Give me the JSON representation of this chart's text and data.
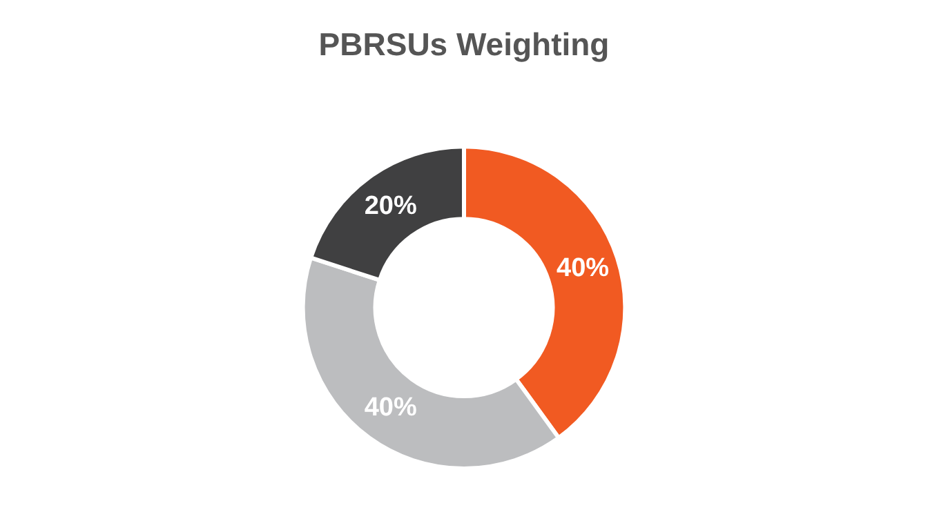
{
  "chart_data": {
    "type": "donut",
    "title": "PBRSUs Weighting",
    "categories": [
      null,
      null,
      null
    ],
    "values": [
      40,
      40,
      20
    ],
    "colors": [
      "#f15a22",
      "#bcbdbf",
      "#404041"
    ],
    "value_labels": [
      "40%",
      "40%",
      "20%"
    ],
    "legend": false
  }
}
